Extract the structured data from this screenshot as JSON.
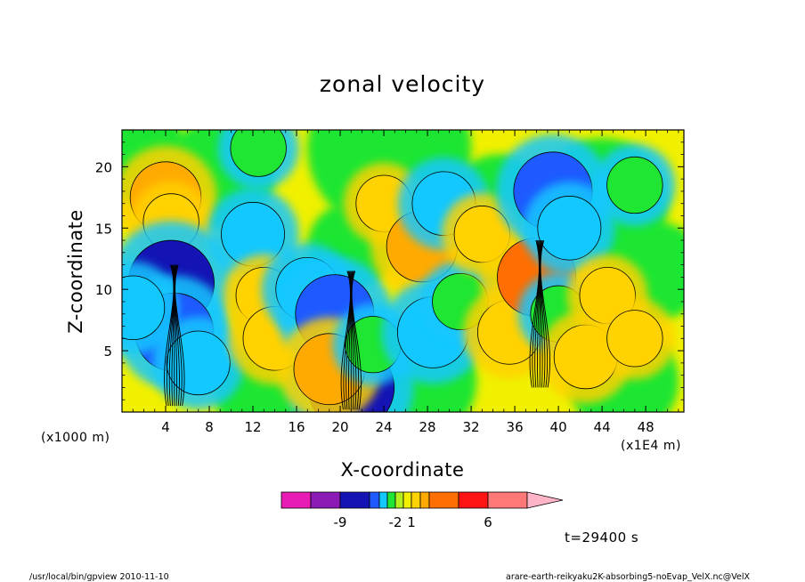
{
  "chart_data": {
    "type": "heatmap",
    "title": "zonal velocity",
    "xlabel": "X-coordinate",
    "ylabel": "Z-coordinate",
    "x_unit": "(x1E4 m)",
    "y_unit": "(x1000 m)",
    "xlim": [
      0,
      51.5
    ],
    "ylim": [
      0,
      23
    ],
    "x_ticks": [
      4,
      8,
      12,
      16,
      20,
      24,
      28,
      32,
      36,
      40,
      44,
      48
    ],
    "y_ticks": [
      5,
      10,
      15,
      20
    ],
    "time_label": "t=29400 s",
    "colorbar": {
      "labels": [
        {
          "bin": 1,
          "text": "-9"
        },
        {
          "bin": 5,
          "text": "-2"
        },
        {
          "bin": 7,
          "text": "1"
        },
        {
          "bin": 11,
          "text": "6"
        }
      ],
      "colors": [
        "#e81cb4",
        "#8c1ab4",
        "#1414b4",
        "#1e5aff",
        "#12c8ff",
        "#1ee632",
        "#b4f01e",
        "#f0f000",
        "#ffd200",
        "#ffaa00",
        "#ff6e00",
        "#ff1414",
        "#ff7878",
        "#ffb4c8"
      ]
    },
    "features": [
      {
        "x": 4.0,
        "z": 17.5,
        "level": 3
      },
      {
        "x": 4.5,
        "z": 15.5,
        "level": 1
      },
      {
        "x": 4.5,
        "z": 10.5,
        "level": -5
      },
      {
        "x": 4.8,
        "z": 6.5,
        "level": -4
      },
      {
        "x": 1.0,
        "z": 8.5,
        "level": -2
      },
      {
        "x": 7.0,
        "z": 4.0,
        "level": -2
      },
      {
        "x": 12.0,
        "z": 14.5,
        "level": -2
      },
      {
        "x": 13.0,
        "z": 9.5,
        "level": 1
      },
      {
        "x": 12.5,
        "z": 21.5,
        "level": -1
      },
      {
        "x": 14.0,
        "z": 6.0,
        "level": 2
      },
      {
        "x": 17.0,
        "z": 10.0,
        "level": -2
      },
      {
        "x": 19.5,
        "z": 8.0,
        "level": -4
      },
      {
        "x": 21.0,
        "z": 2.0,
        "level": -5
      },
      {
        "x": 19.0,
        "z": 3.5,
        "level": 3
      },
      {
        "x": 23.0,
        "z": 5.5,
        "level": -1
      },
      {
        "x": 24.0,
        "z": 17.0,
        "level": 1
      },
      {
        "x": 27.5,
        "z": 13.5,
        "level": 3
      },
      {
        "x": 29.5,
        "z": 17.0,
        "level": -2
      },
      {
        "x": 28.5,
        "z": 6.5,
        "level": -3
      },
      {
        "x": 31.0,
        "z": 9.0,
        "level": -1
      },
      {
        "x": 33.0,
        "z": 14.5,
        "level": 1
      },
      {
        "x": 35.5,
        "z": 6.5,
        "level": 2
      },
      {
        "x": 38.0,
        "z": 11.0,
        "level": 4
      },
      {
        "x": 39.5,
        "z": 18.0,
        "level": -4
      },
      {
        "x": 41.0,
        "z": 15.0,
        "level": -2
      },
      {
        "x": 40.0,
        "z": 8.0,
        "level": -1
      },
      {
        "x": 42.5,
        "z": 4.5,
        "level": 2
      },
      {
        "x": 44.5,
        "z": 9.5,
        "level": 1
      },
      {
        "x": 47.0,
        "z": 6.0,
        "level": 1
      },
      {
        "x": 47.0,
        "z": 18.5,
        "level": -1
      }
    ]
  },
  "footer": {
    "left": "/usr/local/bin/gpview  2010-11-10",
    "right": "arare-earth-reikyaku2K-absorbing5-noEvap_VelX.nc@VelX"
  }
}
